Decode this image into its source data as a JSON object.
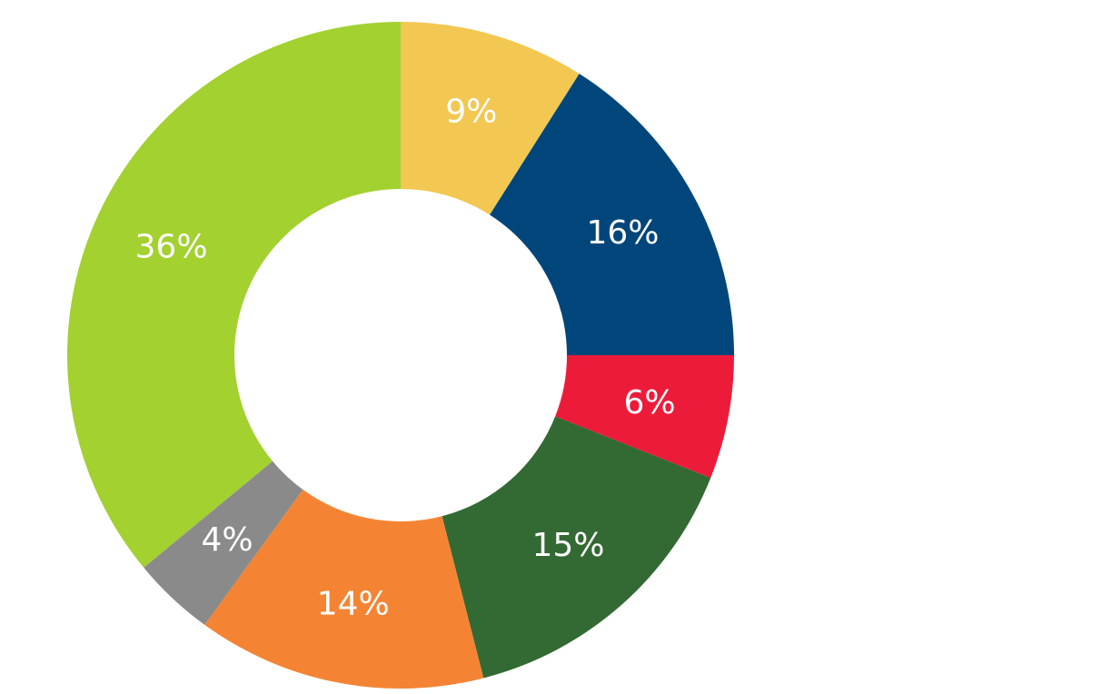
{
  "chart_data": {
    "type": "pie",
    "variant": "donut",
    "title": "",
    "legend": "none",
    "label_format": "percent",
    "slices": [
      {
        "label": "9%",
        "value": 9,
        "color": "#F2C852"
      },
      {
        "label": "16%",
        "value": 16,
        "color": "#00467A"
      },
      {
        "label": "6%",
        "value": 6,
        "color": "#ED1B3A"
      },
      {
        "label": "15%",
        "value": 15,
        "color": "#336933"
      },
      {
        "label": "14%",
        "value": 14,
        "color": "#F48434"
      },
      {
        "label": "4%",
        "value": 4,
        "color": "#8A8A8A"
      },
      {
        "label": "36%",
        "value": 36,
        "color": "#A2D130"
      }
    ]
  }
}
